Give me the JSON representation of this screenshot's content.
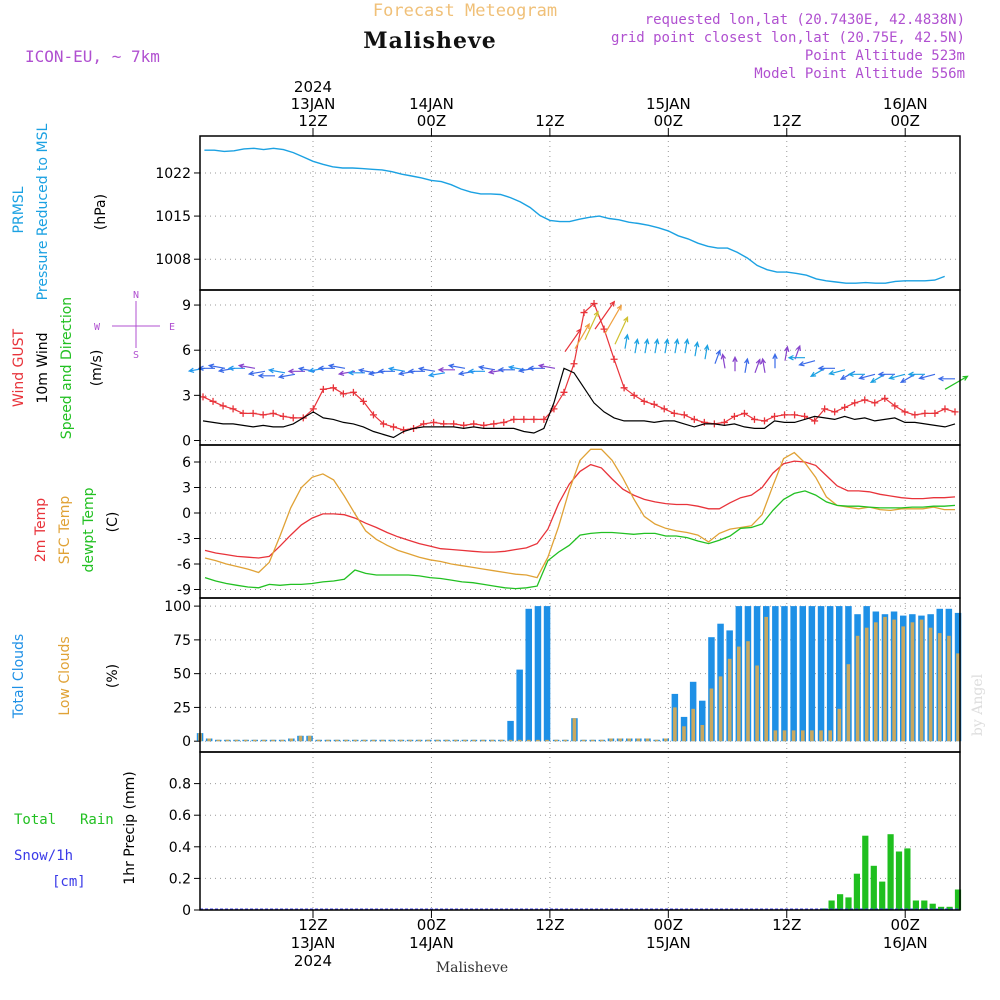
{
  "header": {
    "title": "Forecast Meteogram",
    "location": "Malisheve",
    "model": "ICON-EU, ~ 7km",
    "requested": "requested lon,lat (20.7430E, 42.4838N)",
    "grid_point": "grid point closest lon,lat (20.75E, 42.5N)",
    "point_altitude": "Point Altitude 523m",
    "model_altitude": "Model Point Altitude 556m",
    "watermark": "by Angel",
    "footer_location": "Malisheve"
  },
  "colors": {
    "pressure": "#1ba1e2",
    "gust": "#e8333a",
    "wind": "#000000",
    "temp2m": "#e8333a",
    "sfc": "#e0a236",
    "dewpt": "#22c022",
    "total_clouds": "#1e90e6",
    "low_clouds": "#c8a860",
    "rain": "#1fbf1f",
    "snow": "#3a3ae8",
    "purple": "#b050d0"
  },
  "time_axis": {
    "top_labels": [
      {
        "t": 0,
        "lines": [
          "2024",
          "13JAN",
          "12Z"
        ]
      },
      {
        "t": 12,
        "lines": [
          "14JAN",
          "00Z"
        ]
      },
      {
        "t": 24,
        "lines": [
          "12Z"
        ]
      },
      {
        "t": 36,
        "lines": [
          "15JAN",
          "00Z"
        ]
      },
      {
        "t": 48,
        "lines": [
          "12Z"
        ]
      },
      {
        "t": 60,
        "lines": [
          "16JAN",
          "00Z"
        ]
      }
    ],
    "bottom_labels": [
      {
        "t": 0,
        "lines": [
          "12Z",
          "13JAN",
          "2024"
        ]
      },
      {
        "t": 12,
        "lines": [
          "00Z",
          "14JAN"
        ]
      },
      {
        "t": 24,
        "lines": [
          "12Z"
        ]
      },
      {
        "t": 36,
        "lines": [
          "00Z",
          "15JAN"
        ]
      },
      {
        "t": 48,
        "lines": [
          "12Z"
        ]
      },
      {
        "t": 60,
        "lines": [
          "00Z",
          "16JAN"
        ]
      }
    ]
  },
  "panels": {
    "pressure": {
      "labels": [
        "PRMSL",
        "Pressure Reduced to MSL"
      ],
      "unit": "(hPa)",
      "ticks": [
        "1008",
        "1015",
        "1022"
      ]
    },
    "wind": {
      "labels": [
        "Wind GUST",
        "10m Wind",
        "Speed and Direction"
      ],
      "unit": "(m/s)",
      "ticks": [
        "0",
        "3",
        "6",
        "9"
      ],
      "compass": {
        "n": "N",
        "s": "S",
        "w": "W",
        "e": "E"
      }
    },
    "temp": {
      "labels": [
        "2m Temp",
        "SFC Temp",
        "dewpt Temp"
      ],
      "unit": "(C)",
      "ticks": [
        "-9",
        "-6",
        "-3",
        "0",
        "3",
        "6"
      ]
    },
    "clouds": {
      "labels": [
        "Total Clouds",
        "Low Clouds"
      ],
      "unit": "(%)",
      "ticks": [
        "0",
        "25",
        "50",
        "75",
        "100"
      ]
    },
    "precip": {
      "labels": [
        "Total",
        "Rain",
        "Snow/1h",
        "[cm]"
      ],
      "axis_label": "1hr Precip (mm)",
      "ticks": [
        "0",
        "0.2",
        "0.4",
        "0.6",
        "0.8"
      ]
    }
  },
  "chart_data": [
    {
      "type": "line",
      "name": "pressure",
      "ylim": [
        1003,
        1028
      ],
      "x_hours_from_13JAN12Z": [
        -11,
        -10,
        -9,
        -8,
        -7,
        -6,
        -5,
        -4,
        -3,
        -2,
        -1,
        0,
        1,
        2,
        3,
        4,
        5,
        6,
        7,
        8,
        9,
        10,
        11,
        12,
        13,
        14,
        15,
        16,
        17,
        18,
        19,
        20,
        21,
        22,
        23,
        24,
        25,
        26,
        27,
        28,
        29,
        30,
        31,
        32,
        33,
        34,
        35,
        36,
        37,
        38,
        39,
        40,
        41,
        42,
        43,
        44,
        45,
        46,
        47,
        48,
        49,
        50,
        51,
        52,
        53,
        54,
        55,
        56,
        57,
        58,
        59,
        60,
        61,
        62,
        63,
        64,
        65
      ],
      "series": [
        {
          "values": [
            1025.7,
            1025.7,
            1025.5,
            1025.6,
            1025.9,
            1026,
            1025.8,
            1026,
            1025.8,
            1025.3,
            1024.6,
            1023.9,
            1023.4,
            1023,
            1022.8,
            1022.8,
            1022.7,
            1022.6,
            1022.5,
            1022.2,
            1021.8,
            1021.5,
            1021.2,
            1020.8,
            1020.6,
            1020.1,
            1019.4,
            1018.9,
            1018.6,
            1018.6,
            1018.5,
            1018,
            1017.3,
            1016.4,
            1015.1,
            1014.3,
            1014.1,
            1014.1,
            1014.5,
            1014.8,
            1015,
            1014.6,
            1014.4,
            1014,
            1013.8,
            1013.5,
            1013.1,
            1012.6,
            1011.8,
            1011.3,
            1010.6,
            1010.1,
            1009.8,
            1009.8,
            1009.1,
            1008.2,
            1007,
            1006.3,
            1005.9,
            1005.9,
            1005.7,
            1005.4,
            1004.8,
            1004.5,
            1004.3,
            1004.1,
            1004.1,
            1004.2,
            1004.1,
            1004.1,
            1004.4,
            1004.5,
            1004.5,
            1004.5,
            1004.6,
            1005.2
          ]
        }
      ]
    },
    {
      "type": "line",
      "name": "wind",
      "ylim": [
        -0.3,
        10
      ],
      "series": [
        {
          "name": "Wind GUST",
          "values": [
            2.9,
            2.6,
            2.3,
            2.1,
            1.8,
            1.8,
            1.7,
            1.8,
            1.6,
            1.5,
            1.5,
            2.1,
            3.4,
            3.5,
            3.1,
            3.2,
            2.6,
            1.7,
            1.1,
            0.9,
            0.7,
            0.8,
            1.1,
            1.2,
            1.1,
            1.1,
            1,
            1.1,
            1,
            1.1,
            1.2,
            1.4,
            1.4,
            1.4,
            1.4,
            2.1,
            3.2,
            5.1,
            8.5,
            9.1,
            7.4,
            5.4,
            3.5,
            3,
            2.6,
            2.4,
            2.1,
            1.8,
            1.7,
            1.4,
            1.2,
            1.1,
            1.2,
            1.6,
            1.8,
            1.4,
            1.3,
            1.6,
            1.7,
            1.7,
            1.6,
            1.3,
            2.1,
            1.9,
            2.2,
            2.5,
            2.7,
            2.5,
            2.8,
            2.3,
            1.9,
            1.7,
            1.8,
            1.8,
            2.1,
            1.9
          ]
        },
        {
          "name": "10m Wind",
          "values": [
            1.3,
            1.2,
            1.1,
            1.1,
            1,
            0.9,
            1,
            0.9,
            0.9,
            1.1,
            1.5,
            1.9,
            1.5,
            1.4,
            1.2,
            1.1,
            0.9,
            0.6,
            0.4,
            0.2,
            0.6,
            0.8,
            0.9,
            0.9,
            0.9,
            0.9,
            0.8,
            0.9,
            0.8,
            0.8,
            0.8,
            0.8,
            0.6,
            0.5,
            0.8,
            2.5,
            4.8,
            4.5,
            3.5,
            2.5,
            1.9,
            1.5,
            1.3,
            1.3,
            1.3,
            1.2,
            1.3,
            1.3,
            1.1,
            0.9,
            1.1,
            1.1,
            1,
            1.1,
            0.9,
            0.8,
            0.8,
            1.3,
            1.2,
            1.2,
            1.4,
            1.6,
            1.5,
            1.4,
            1.6,
            1.4,
            1.5,
            1.3,
            1.4,
            1.5,
            1.2,
            1.2,
            1.1,
            1,
            0.9,
            1.1
          ]
        },
        {
          "name": "wind arrows",
          "values": [
            4.8,
            4.8,
            4.8,
            4.8,
            4.8,
            4.8,
            4.6,
            4.3,
            4.5,
            4.4,
            4.6,
            4.6,
            4.8,
            4.8,
            4.8,
            4.6,
            4.5,
            4.5,
            4.6,
            4.6,
            4.6,
            4.6,
            4.6,
            4.6,
            4.5,
            4.7,
            4.8,
            4.6,
            4.6,
            4.7,
            4.7,
            4.7,
            4.7,
            4.8,
            4.8,
            4.8,
            5.9,
            6.1,
            6.7,
            7.4,
            7.1,
            6.4,
            6.1,
            5.8,
            5.8,
            5.8,
            5.8,
            5.8,
            5.8,
            5.6,
            5.4,
            5.1,
            4.8,
            4.6,
            4.5,
            4.5,
            4.5,
            4.8,
            5.3,
            5.4,
            5.5,
            5.3,
            4.8,
            4.8,
            4.7,
            4.6,
            4.4,
            4.4,
            4.4,
            4.4,
            4.4,
            4.4,
            4.4,
            4.4,
            3.4,
            4.1
          ]
        }
      ]
    },
    {
      "type": "line",
      "name": "temperature",
      "ylim": [
        -10,
        8
      ],
      "series": [
        {
          "name": "2m Temp",
          "values": [
            -4.4,
            -4.7,
            -4.9,
            -5.1,
            -5.2,
            -5.3,
            -5.1,
            -3.9,
            -2.6,
            -1.4,
            -0.6,
            -0.1,
            -0.1,
            -0.2,
            -0.6,
            -1.2,
            -1.7,
            -2.3,
            -2.8,
            -3.2,
            -3.6,
            -3.9,
            -4.2,
            -4.3,
            -4.4,
            -4.5,
            -4.6,
            -4.6,
            -4.5,
            -4.3,
            -4.1,
            -3.6,
            -1.9,
            1.1,
            3.4,
            4.9,
            5.7,
            5.3,
            4,
            2.8,
            2.1,
            1.6,
            1.3,
            1.1,
            1,
            1,
            0.8,
            0.5,
            0.5,
            1.2,
            1.8,
            2.1,
            3,
            4.7,
            5.8,
            6.1,
            6,
            5.6,
            4.4,
            3.2,
            2.6,
            2.6,
            2.5,
            2.2,
            2,
            1.8,
            1.7,
            1.7,
            1.8,
            1.8,
            1.9
          ]
        },
        {
          "name": "SFC Temp",
          "values": [
            -5.3,
            -5.6,
            -6,
            -6.3,
            -6.6,
            -7,
            -5.8,
            -2.7,
            0.6,
            3,
            4.2,
            4.6,
            3.9,
            2,
            -0.1,
            -2.1,
            -3.1,
            -3.8,
            -4.4,
            -4.8,
            -5.2,
            -5.5,
            -5.7,
            -6,
            -6.2,
            -6.4,
            -6.6,
            -6.8,
            -7,
            -7.2,
            -7.3,
            -7.6,
            -5.2,
            -1.6,
            2.7,
            6.2,
            7.5,
            7.5,
            6.2,
            4.1,
            1.7,
            -0.4,
            -1.3,
            -1.8,
            -2.1,
            -2.3,
            -2.6,
            -3.4,
            -2.4,
            -1.9,
            -1.7,
            -1.5,
            -0.2,
            3.2,
            6.4,
            7.1,
            5.9,
            4.2,
            1.9,
            0.9,
            0.7,
            0.5,
            0.7,
            0.4,
            0.3,
            0.5,
            0.5,
            0.5,
            0.7,
            0.4,
            0.4
          ]
        },
        {
          "name": "dewpt Temp",
          "values": [
            -7.6,
            -8,
            -8.3,
            -8.5,
            -8.7,
            -8.8,
            -8.4,
            -8.5,
            -8.4,
            -8.4,
            -8.3,
            -8.1,
            -8,
            -7.8,
            -6.7,
            -7.1,
            -7.3,
            -7.3,
            -7.3,
            -7.3,
            -7.4,
            -7.6,
            -7.7,
            -7.9,
            -8.1,
            -8.2,
            -8.4,
            -8.6,
            -8.8,
            -8.9,
            -8.8,
            -8.6,
            -5.6,
            -4.6,
            -3.8,
            -2.6,
            -2.4,
            -2.3,
            -2.3,
            -2.4,
            -2.5,
            -2.4,
            -2.4,
            -2.7,
            -2.7,
            -2.9,
            -3.3,
            -3.6,
            -3.2,
            -2.7,
            -1.8,
            -1.7,
            -1.3,
            0.3,
            1.6,
            2.3,
            2.6,
            2.1,
            1.3,
            0.9,
            0.8,
            0.8,
            0.7,
            0.6,
            0.6,
            0.6,
            0.7,
            0.7,
            0.8,
            0.8,
            0.9
          ]
        }
      ]
    },
    {
      "type": "bar",
      "name": "clouds",
      "ylim": [
        -8,
        106
      ],
      "series": [
        {
          "name": "Total Clouds",
          "values": [
            6,
            2,
            1,
            1,
            1,
            1,
            1,
            1,
            1,
            1,
            2,
            4,
            4,
            1,
            1,
            1,
            1,
            1,
            1,
            1,
            1,
            1,
            1,
            1,
            1,
            1,
            1,
            1,
            1,
            1,
            1,
            1,
            1,
            1,
            15,
            53,
            98,
            100,
            100,
            1,
            1,
            17,
            1,
            1,
            1,
            2,
            2,
            2,
            2,
            2,
            1,
            2,
            35,
            18,
            44,
            30,
            77,
            87,
            82,
            100,
            100,
            100,
            100,
            100,
            100,
            100,
            100,
            100,
            100,
            100,
            100,
            100,
            94,
            100,
            96,
            94,
            96,
            93,
            94,
            93,
            94,
            98,
            98,
            95
          ]
        },
        {
          "name": "Low Clouds",
          "values": [
            6,
            2,
            1,
            1,
            1,
            1,
            1,
            1,
            1,
            1,
            2,
            4,
            4,
            1,
            1,
            1,
            1,
            1,
            1,
            1,
            1,
            1,
            1,
            1,
            1,
            1,
            1,
            1,
            1,
            1,
            1,
            1,
            1,
            1,
            1,
            1,
            1,
            1,
            1,
            1,
            1,
            17,
            1,
            1,
            1,
            2,
            2,
            2,
            2,
            2,
            1,
            2,
            25,
            11,
            24,
            12,
            39,
            48,
            61,
            70,
            74,
            56,
            92,
            8,
            8,
            8,
            8,
            8,
            8,
            8,
            24,
            57,
            78,
            84,
            88,
            92,
            90,
            85,
            88,
            90,
            84,
            80,
            78,
            65
          ]
        }
      ]
    },
    {
      "type": "bar",
      "name": "precipitation",
      "ylim": [
        0,
        1
      ],
      "series": [
        {
          "name": "Total Rain",
          "values": [
            0,
            0,
            0,
            0,
            0,
            0,
            0,
            0,
            0,
            0,
            0,
            0,
            0,
            0,
            0,
            0,
            0,
            0,
            0,
            0,
            0,
            0,
            0,
            0,
            0,
            0,
            0,
            0,
            0,
            0,
            0,
            0,
            0,
            0,
            0,
            0,
            0,
            0,
            0,
            0,
            0,
            0,
            0,
            0,
            0,
            0,
            0,
            0,
            0,
            0,
            0,
            0,
            0,
            0,
            0,
            0,
            0,
            0,
            0,
            0,
            0,
            0,
            0,
            0,
            0,
            0,
            0,
            0,
            0,
            0,
            0,
            0,
            0,
            0,
            0.01,
            0.06,
            0.1,
            0.08,
            0.23,
            0.47,
            0.28,
            0.18,
            0.48,
            0.37,
            0.39,
            0.06,
            0.06,
            0.04,
            0.02,
            0.02,
            0.13
          ]
        }
      ]
    }
  ]
}
